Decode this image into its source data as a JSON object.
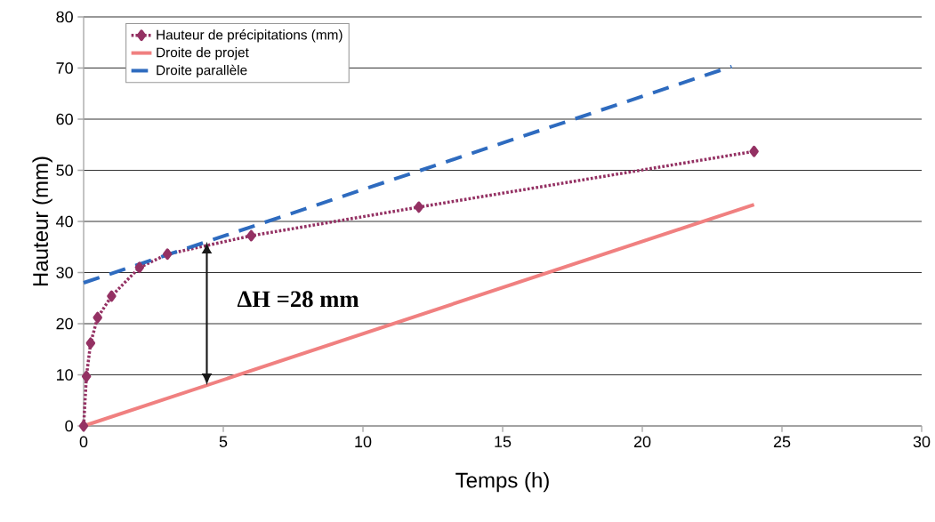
{
  "chart_data": {
    "type": "line",
    "xlabel": "Temps (h)",
    "ylabel": "Hauteur (mm)",
    "xlim": [
      0,
      30
    ],
    "ylim": [
      0,
      80
    ],
    "xticks": [
      0,
      5,
      10,
      15,
      20,
      25,
      30
    ],
    "yticks": [
      0,
      10,
      20,
      30,
      40,
      50,
      60,
      70,
      80
    ],
    "grid": "y",
    "legend": "top left",
    "annotations": [
      "ΔH =28 mm"
    ],
    "series": [
      {
        "name": "Hauteur de précipitations (mm)",
        "color": "#943163",
        "marker": "diamond",
        "line_style": "dotted",
        "x": [
          0,
          0.1,
          0.25,
          0.5,
          1,
          2,
          3,
          6,
          12,
          24
        ],
        "values": [
          0,
          9.7,
          16.2,
          21.2,
          25.4,
          31,
          33.6,
          37.2,
          42.8,
          53.7
        ]
      },
      {
        "name": "Droite de projet",
        "color": "#f08080",
        "marker": "none",
        "line_style": "solid",
        "x": [
          0,
          24
        ],
        "values": [
          0,
          43.3
        ]
      },
      {
        "name": "Droite parallèle",
        "color": "#2e6bbf",
        "marker": "none",
        "line_style": "dashed",
        "x": [
          0,
          23.2
        ],
        "values": [
          28,
          70.3
        ]
      }
    ]
  }
}
